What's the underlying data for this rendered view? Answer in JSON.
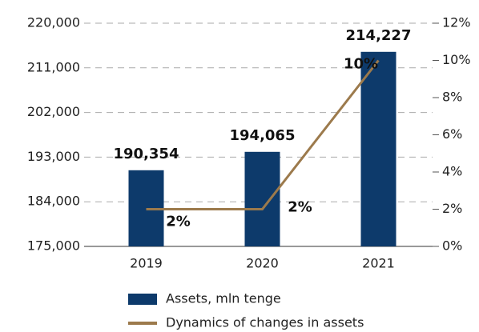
{
  "chart_data": {
    "type": "bar_line",
    "categories": [
      "2019",
      "2020",
      "2021"
    ],
    "series": [
      {
        "name": "Assets, mln tenge",
        "type": "bar",
        "color": "#0d3a6b",
        "values": [
          190354,
          194065,
          214227
        ],
        "value_labels": [
          "190,354",
          "194,065",
          "214,227"
        ]
      },
      {
        "name": "Dynamics of changes in assets",
        "type": "line",
        "axis": "y2",
        "color": "#9c7a4c",
        "values": [
          2,
          2,
          10
        ],
        "value_labels": [
          "2%",
          "2%",
          "10%"
        ]
      }
    ],
    "ylim": [
      175000,
      220000
    ],
    "yticks": [
      {
        "value": 175000,
        "label": "175,000"
      },
      {
        "value": 184000,
        "label": "184,000"
      },
      {
        "value": 193000,
        "label": "193,000"
      },
      {
        "value": 202000,
        "label": "202,000"
      },
      {
        "value": 211000,
        "label": "211,000"
      },
      {
        "value": 220000,
        "label": "220,000"
      }
    ],
    "y2lim": [
      0,
      12
    ],
    "y2ticks": [
      {
        "value": 0,
        "label": "0%"
      },
      {
        "value": 2,
        "label": "2%"
      },
      {
        "value": 4,
        "label": "4%"
      },
      {
        "value": 6,
        "label": "6%"
      },
      {
        "value": 8,
        "label": "8%"
      },
      {
        "value": 10,
        "label": "10%"
      },
      {
        "value": 12,
        "label": "12%"
      }
    ],
    "grid": true
  }
}
